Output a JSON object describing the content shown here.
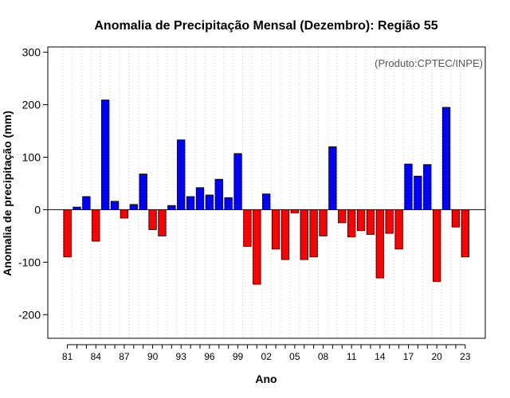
{
  "chart_data": {
    "type": "bar",
    "title": "Anomalia de Precipitação Mensal (Dezembro): Região 55",
    "xlabel": "Ano",
    "ylabel": "Anomalia de precipitação (mm)",
    "annotation": "(Produto:CPTEC/INPE)",
    "ylim": [
      -245,
      310
    ],
    "yticks": [
      -200,
      -100,
      0,
      100,
      200,
      300
    ],
    "years": [
      1981,
      1982,
      1983,
      1984,
      1985,
      1986,
      1987,
      1988,
      1989,
      1990,
      1991,
      1992,
      1993,
      1994,
      1995,
      1996,
      1997,
      1998,
      1999,
      2000,
      2001,
      2002,
      2003,
      2004,
      2005,
      2006,
      2007,
      2008,
      2009,
      2010,
      2011,
      2012,
      2013,
      2014,
      2015,
      2016,
      2017,
      2018,
      2019,
      2020,
      2021,
      2022,
      2023
    ],
    "values": [
      -90,
      5,
      25,
      -60,
      209,
      16,
      -16,
      10,
      68,
      -38,
      -50,
      8,
      133,
      25,
      42,
      28,
      58,
      23,
      107,
      -70,
      -142,
      30,
      -75,
      -95,
      -6,
      -95,
      -90,
      -50,
      120,
      -25,
      -52,
      -40,
      -47,
      -130,
      -45,
      -75,
      87,
      64,
      86,
      -137,
      195,
      -33,
      -90
    ],
    "xtick_labels": [
      "81",
      "84",
      "87",
      "90",
      "93",
      "96",
      "99",
      "02",
      "05",
      "08",
      "11",
      "14",
      "17",
      "20",
      "23"
    ],
    "series_colors": {
      "positive": "#0000ff",
      "negative": "#ff0000"
    },
    "grid": "vertical dotted"
  }
}
